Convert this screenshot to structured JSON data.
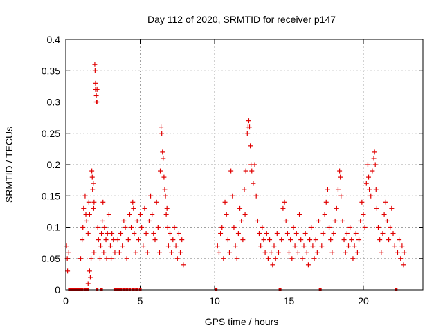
{
  "chart_data": {
    "type": "scatter",
    "title": "Day 112 of 2020, SRMTID for receiver p147",
    "xlabel": "GPS time / hours",
    "ylabel": "SRMTID / TECUs",
    "xlim": [
      0,
      24
    ],
    "ylim": [
      0,
      0.4
    ],
    "xticks": [
      0,
      5,
      10,
      15,
      20
    ],
    "xtick_labels": [
      "0",
      "5",
      "10",
      "15",
      "20"
    ],
    "yticks": [
      0,
      0.05,
      0.1,
      0.15,
      0.2,
      0.25,
      0.3,
      0.35,
      0.4
    ],
    "ytick_labels": [
      "0",
      "0.05",
      "0.1",
      "0.15",
      "0.2",
      "0.25",
      "0.3",
      "0.35",
      "0.4"
    ],
    "grid": true,
    "marker": "plus",
    "color": "#e00000",
    "series": [
      {
        "name": "SRMTID",
        "points": [
          [
            0.05,
            0.07
          ],
          [
            0.1,
            0.05
          ],
          [
            0.12,
            0.03
          ],
          [
            0.2,
            0.06
          ],
          [
            0.25,
            0.0
          ],
          [
            0.4,
            0.0
          ],
          [
            0.55,
            0.0
          ],
          [
            0.7,
            0.0
          ],
          [
            0.85,
            0.0
          ],
          [
            1.0,
            0.0
          ],
          [
            1.1,
            0.0
          ],
          [
            1.3,
            0.0
          ],
          [
            1.45,
            0.0
          ],
          [
            1.5,
            0.01
          ],
          [
            1.0,
            0.05
          ],
          [
            1.1,
            0.08
          ],
          [
            1.15,
            0.1
          ],
          [
            1.2,
            0.13
          ],
          [
            1.3,
            0.15
          ],
          [
            1.35,
            0.12
          ],
          [
            1.4,
            0.11
          ],
          [
            1.5,
            0.09
          ],
          [
            1.55,
            0.14
          ],
          [
            1.6,
            0.12
          ],
          [
            1.6,
            0.03
          ],
          [
            1.65,
            0.02
          ],
          [
            1.7,
            0.05
          ],
          [
            1.75,
            0.19
          ],
          [
            1.78,
            0.18
          ],
          [
            1.8,
            0.16
          ],
          [
            1.85,
            0.17
          ],
          [
            1.88,
            0.13
          ],
          [
            1.9,
            0.14
          ],
          [
            1.9,
            0.06
          ],
          [
            1.95,
            0.36
          ],
          [
            1.97,
            0.35
          ],
          [
            2.0,
            0.33
          ],
          [
            2.0,
            0.32
          ],
          [
            2.05,
            0.31
          ],
          [
            2.05,
            0.3
          ],
          [
            2.1,
            0.32
          ],
          [
            2.1,
            0.3
          ],
          [
            2.15,
            0.1
          ],
          [
            2.2,
            0.08
          ],
          [
            2.3,
            0.05
          ],
          [
            2.35,
            0.07
          ],
          [
            2.4,
            0.09
          ],
          [
            2.45,
            0.11
          ],
          [
            2.5,
            0.14
          ],
          [
            2.55,
            0.06
          ],
          [
            2.6,
            0.1
          ],
          [
            2.7,
            0.08
          ],
          [
            2.75,
            0.05
          ],
          [
            2.8,
            0.09
          ],
          [
            2.9,
            0.12
          ],
          [
            3.0,
            0.07
          ],
          [
            3.05,
            0.05
          ],
          [
            3.1,
            0.09
          ],
          [
            3.2,
            0.08
          ],
          [
            3.3,
            0.06
          ],
          [
            2.1,
            0.0
          ],
          [
            2.4,
            0.0
          ],
          [
            3.3,
            0.0
          ],
          [
            3.4,
            0.0
          ],
          [
            3.55,
            0.0
          ],
          [
            3.7,
            0.0
          ],
          [
            3.9,
            0.0
          ],
          [
            4.1,
            0.0
          ],
          [
            4.3,
            0.0
          ],
          [
            4.55,
            0.0
          ],
          [
            4.75,
            0.0
          ],
          [
            5.0,
            0.0
          ],
          [
            3.5,
            0.08
          ],
          [
            3.6,
            0.06
          ],
          [
            3.7,
            0.09
          ],
          [
            3.8,
            0.07
          ],
          [
            3.9,
            0.11
          ],
          [
            4.0,
            0.1
          ],
          [
            4.1,
            0.05
          ],
          [
            4.2,
            0.08
          ],
          [
            4.3,
            0.12
          ],
          [
            4.4,
            0.1
          ],
          [
            4.5,
            0.14
          ],
          [
            4.55,
            0.13
          ],
          [
            4.6,
            0.09
          ],
          [
            4.7,
            0.06
          ],
          [
            4.8,
            0.11
          ],
          [
            4.9,
            0.08
          ],
          [
            5.0,
            0.12
          ],
          [
            5.1,
            0.1
          ],
          [
            5.2,
            0.07
          ],
          [
            5.3,
            0.13
          ],
          [
            5.4,
            0.09
          ],
          [
            5.5,
            0.06
          ],
          [
            5.6,
            0.11
          ],
          [
            5.7,
            0.15
          ],
          [
            5.8,
            0.12
          ],
          [
            5.9,
            0.09
          ],
          [
            6.0,
            0.08
          ],
          [
            6.1,
            0.14
          ],
          [
            6.2,
            0.1
          ],
          [
            6.3,
            0.06
          ],
          [
            6.35,
            0.19
          ],
          [
            6.4,
            0.26
          ],
          [
            6.45,
            0.25
          ],
          [
            6.5,
            0.22
          ],
          [
            6.55,
            0.21
          ],
          [
            6.6,
            0.18
          ],
          [
            6.65,
            0.16
          ],
          [
            6.7,
            0.15
          ],
          [
            6.75,
            0.12
          ],
          [
            6.8,
            0.13
          ],
          [
            6.85,
            0.1
          ],
          [
            6.9,
            0.07
          ],
          [
            7.0,
            0.09
          ],
          [
            7.1,
            0.06
          ],
          [
            7.2,
            0.08
          ],
          [
            7.3,
            0.1
          ],
          [
            7.4,
            0.07
          ],
          [
            7.5,
            0.05
          ],
          [
            7.6,
            0.09
          ],
          [
            7.7,
            0.06
          ],
          [
            7.8,
            0.08
          ],
          [
            7.9,
            0.04
          ],
          [
            10.1,
            0.0
          ],
          [
            10.2,
            0.07
          ],
          [
            10.3,
            0.06
          ],
          [
            10.4,
            0.09
          ],
          [
            10.5,
            0.1
          ],
          [
            10.6,
            0.05
          ],
          [
            10.7,
            0.14
          ],
          [
            10.8,
            0.12
          ],
          [
            10.9,
            0.08
          ],
          [
            11.0,
            0.06
          ],
          [
            11.1,
            0.19
          ],
          [
            11.2,
            0.15
          ],
          [
            11.3,
            0.1
          ],
          [
            11.4,
            0.07
          ],
          [
            11.5,
            0.05
          ],
          [
            11.6,
            0.09
          ],
          [
            11.7,
            0.13
          ],
          [
            11.8,
            0.11
          ],
          [
            11.9,
            0.08
          ],
          [
            12.0,
            0.16
          ],
          [
            12.05,
            0.12
          ],
          [
            12.1,
            0.19
          ],
          [
            12.2,
            0.25
          ],
          [
            12.25,
            0.26
          ],
          [
            12.3,
            0.27
          ],
          [
            12.35,
            0.26
          ],
          [
            12.4,
            0.23
          ],
          [
            12.45,
            0.2
          ],
          [
            12.5,
            0.19
          ],
          [
            12.6,
            0.17
          ],
          [
            12.7,
            0.2
          ],
          [
            12.8,
            0.15
          ],
          [
            12.9,
            0.11
          ],
          [
            13.0,
            0.09
          ],
          [
            13.1,
            0.07
          ],
          [
            13.2,
            0.1
          ],
          [
            13.3,
            0.08
          ],
          [
            13.4,
            0.06
          ],
          [
            13.5,
            0.09
          ],
          [
            13.6,
            0.05
          ],
          [
            13.7,
            0.08
          ],
          [
            13.8,
            0.06
          ],
          [
            13.9,
            0.04
          ],
          [
            14.0,
            0.07
          ],
          [
            14.1,
            0.05
          ],
          [
            14.2,
            0.09
          ],
          [
            14.3,
            0.06
          ],
          [
            14.4,
            0.0
          ],
          [
            14.5,
            0.08
          ],
          [
            14.6,
            0.13
          ],
          [
            14.7,
            0.14
          ],
          [
            14.8,
            0.11
          ],
          [
            14.9,
            0.09
          ],
          [
            15.0,
            0.06
          ],
          [
            15.1,
            0.08
          ],
          [
            15.2,
            0.05
          ],
          [
            15.3,
            0.1
          ],
          [
            15.4,
            0.07
          ],
          [
            15.5,
            0.09
          ],
          [
            15.6,
            0.06
          ],
          [
            15.7,
            0.12
          ],
          [
            15.8,
            0.08
          ],
          [
            15.9,
            0.05
          ],
          [
            16.0,
            0.07
          ],
          [
            16.1,
            0.09
          ],
          [
            16.2,
            0.06
          ],
          [
            16.3,
            0.04
          ],
          [
            16.4,
            0.08
          ],
          [
            16.5,
            0.1
          ],
          [
            16.6,
            0.07
          ],
          [
            16.7,
            0.05
          ],
          [
            16.8,
            0.08
          ],
          [
            16.9,
            0.06
          ],
          [
            17.0,
            0.11
          ],
          [
            17.1,
            0.0
          ],
          [
            17.2,
            0.07
          ],
          [
            17.3,
            0.09
          ],
          [
            17.4,
            0.12
          ],
          [
            17.5,
            0.14
          ],
          [
            17.6,
            0.16
          ],
          [
            17.7,
            0.1
          ],
          [
            17.8,
            0.08
          ],
          [
            17.9,
            0.06
          ],
          [
            18.0,
            0.09
          ],
          [
            18.1,
            0.11
          ],
          [
            18.2,
            0.13
          ],
          [
            18.3,
            0.16
          ],
          [
            18.4,
            0.19
          ],
          [
            18.45,
            0.18
          ],
          [
            18.5,
            0.15
          ],
          [
            18.6,
            0.11
          ],
          [
            18.7,
            0.08
          ],
          [
            18.8,
            0.06
          ],
          [
            18.9,
            0.09
          ],
          [
            19.0,
            0.07
          ],
          [
            19.1,
            0.1
          ],
          [
            19.2,
            0.08
          ],
          [
            19.3,
            0.05
          ],
          [
            19.4,
            0.07
          ],
          [
            19.5,
            0.09
          ],
          [
            19.6,
            0.06
          ],
          [
            19.7,
            0.08
          ],
          [
            19.8,
            0.11
          ],
          [
            19.9,
            0.14
          ],
          [
            20.0,
            0.12
          ],
          [
            20.1,
            0.1
          ],
          [
            20.2,
            0.17
          ],
          [
            20.3,
            0.2
          ],
          [
            20.35,
            0.18
          ],
          [
            20.4,
            0.16
          ],
          [
            20.5,
            0.15
          ],
          [
            20.6,
            0.19
          ],
          [
            20.7,
            0.21
          ],
          [
            20.75,
            0.22
          ],
          [
            20.8,
            0.2
          ],
          [
            20.85,
            0.16
          ],
          [
            20.9,
            0.13
          ],
          [
            21.0,
            0.1
          ],
          [
            21.1,
            0.08
          ],
          [
            21.2,
            0.06
          ],
          [
            21.3,
            0.09
          ],
          [
            21.4,
            0.12
          ],
          [
            21.5,
            0.14
          ],
          [
            21.6,
            0.11
          ],
          [
            21.7,
            0.08
          ],
          [
            21.8,
            0.1
          ],
          [
            21.9,
            0.13
          ],
          [
            22.0,
            0.09
          ],
          [
            22.1,
            0.07
          ],
          [
            22.2,
            0.0
          ],
          [
            22.3,
            0.06
          ],
          [
            22.4,
            0.08
          ],
          [
            22.5,
            0.05
          ],
          [
            22.6,
            0.07
          ],
          [
            22.7,
            0.04
          ],
          [
            22.75,
            0.06
          ]
        ]
      }
    ]
  }
}
